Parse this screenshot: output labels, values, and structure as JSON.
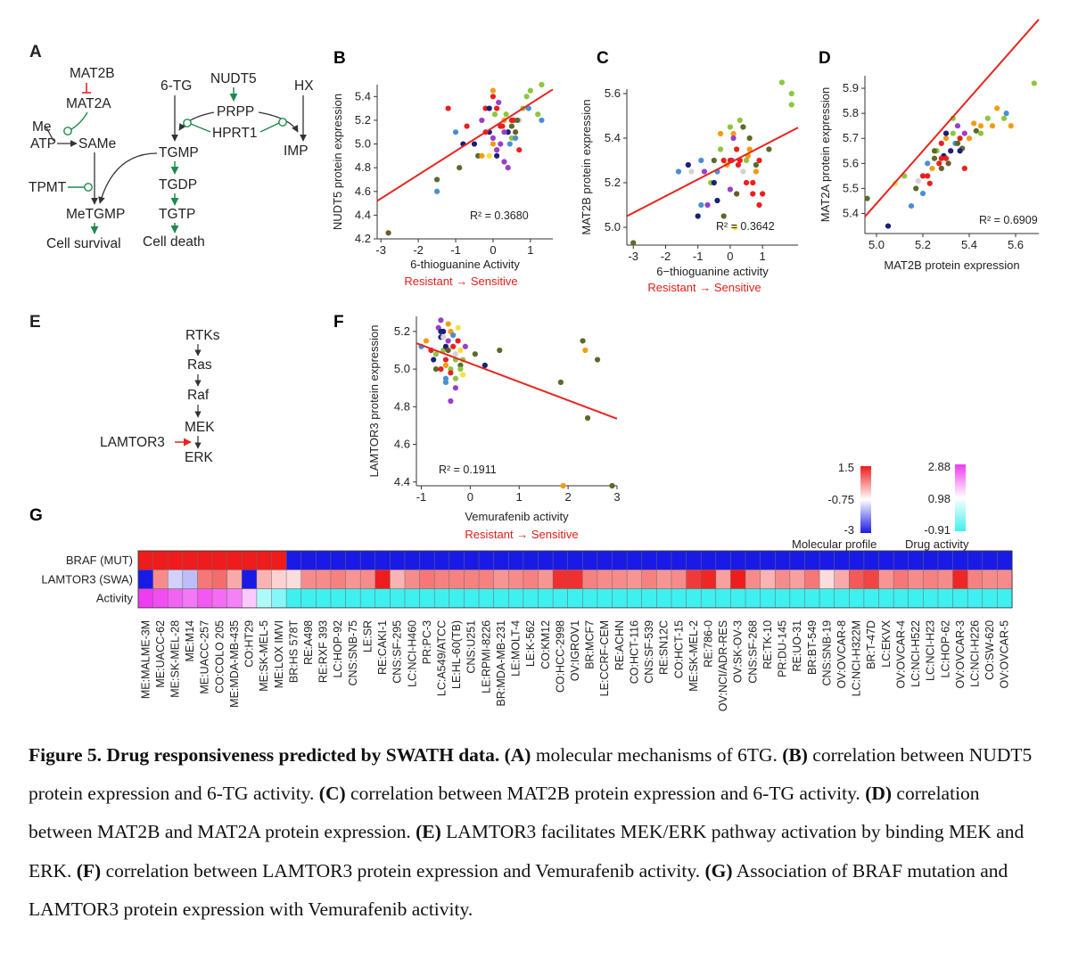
{
  "panels": {
    "A": {
      "label": "A",
      "nodes": {
        "mat2b": "MAT2B",
        "mat2a": "MAT2A",
        "me": "Me",
        "atp": "ATP",
        "same": "SAMe",
        "tpmt": "TPMT",
        "metgmp": "MeTGMP",
        "cell_survival": "Cell survival",
        "tg6": "6-TG",
        "nudt5": "NUDT5",
        "hx": "HX",
        "prpp": "PRPP",
        "hprt1": "HPRT1",
        "tgmp": "TGMP",
        "imp": "IMP",
        "tgdp": "TGDP",
        "tgtp": "TGTP",
        "cell_death": "Cell death"
      }
    },
    "B": {
      "label": "B"
    },
    "C": {
      "label": "C"
    },
    "D": {
      "label": "D"
    },
    "E": {
      "label": "E",
      "nodes": {
        "rtks": "RTKs",
        "ras": "Ras",
        "raf": "Raf",
        "mek": "MEK",
        "erk": "ERK",
        "lamtor3": "LAMTOR3"
      }
    },
    "F": {
      "label": "F"
    },
    "G": {
      "label": "G",
      "row_labels": [
        "BRAF (MUT)",
        "LAMTOR3 (SWA)",
        "Activity"
      ],
      "cell_lines": [
        "ME:MALME-3M",
        "ME:UACC-62",
        "ME:SK-MEL-28",
        "ME:M14",
        "ME:UACC-257",
        "CO:COLO 205",
        "ME:MDA-MB-435",
        "CO:HT29",
        "ME:SK-MEL-5",
        "ME:LOX IMVI",
        "BR:HS 578T",
        "RE:A498",
        "RE:RXF 393",
        "LC:HOP-92",
        "CNS:SNB-75",
        "LE:SR",
        "RE:CAKI-1",
        "CNS:SF-295",
        "LC:NCI-H460",
        "PR:PC-3",
        "LC:A549/ATCC",
        "LE:HL-60(TB)",
        "CNS:U251",
        "LE:RPMI-8226",
        "BR:MDA-MB-231",
        "LE:MOLT-4",
        "LE:K-562",
        "CO:KM12",
        "CO:HCC-2998",
        "OV:IGROV1",
        "BR:MCF7",
        "LE:CCRF-CEM",
        "RE:ACHN",
        "CO:HCT-116",
        "CNS:SF-539",
        "RE:SN12C",
        "CO:HCT-15",
        "ME:SK-MEL-2",
        "RE:786-0",
        "OV:NCI/ADR-RES",
        "OV:SK-OV-3",
        "CNS:SF-268",
        "RE:TK-10",
        "PR:DU-145",
        "RE:UO-31",
        "BR:BT-549",
        "CNS:SNB-19",
        "OV:OVCAR-8",
        "LC:NCI-H322M",
        "BR:T-47D",
        "LC:EKVX",
        "OV:OVCAR-4",
        "LC:NCI-H522",
        "LC:NCI-H23",
        "LC:HOP-62",
        "OV:OVCAR-3",
        "LC:NCI-H226",
        "CO:SW-620",
        "OV:OVCAR-5"
      ],
      "braf_mut": [
        1.5,
        1.5,
        1.5,
        1.5,
        1.5,
        1.5,
        1.5,
        1.5,
        1.5,
        1.5,
        -3,
        -3,
        -3,
        -3,
        -3,
        -3,
        -3,
        -3,
        -3,
        -3,
        -3,
        -3,
        -3,
        -3,
        -3,
        -3,
        -3,
        -3,
        -3,
        -3,
        -3,
        -3,
        -3,
        -3,
        -3,
        -3,
        -3,
        -3,
        -3,
        -3,
        -3,
        -3,
        -3,
        -3,
        -3,
        -3,
        -3,
        -3,
        -3,
        -3,
        -3,
        -3,
        -3,
        -3,
        -3,
        -3,
        -3,
        -3,
        -3
      ],
      "lamtor3": [
        -3,
        0.4,
        -1.2,
        -1.4,
        0.6,
        0.7,
        0.1,
        -3,
        0,
        -0.3,
        -0.4,
        0.4,
        0.4,
        0.5,
        0.3,
        0.4,
        1.5,
        0,
        0.4,
        0.6,
        0.5,
        0.5,
        0.5,
        0.5,
        0.3,
        0.4,
        0.5,
        0.3,
        1.3,
        1.3,
        0.5,
        0.4,
        0.4,
        0.3,
        0.5,
        0.3,
        0.4,
        1.2,
        1.4,
        0.2,
        1.5,
        0.4,
        0,
        0.4,
        0.2,
        0.6,
        -0.4,
        0.1,
        0.9,
        1.1,
        0.3,
        0.6,
        0.4,
        0.5,
        0.4,
        1.4,
        0.5,
        0.4,
        0.4
      ],
      "activity": [
        2.88,
        2.7,
        2.5,
        2.3,
        2.6,
        2.4,
        2.2,
        1.5,
        0.2,
        -0.2,
        -0.91,
        -0.91,
        -0.91,
        -0.91,
        -0.91,
        -0.91,
        -0.91,
        -0.91,
        -0.91,
        -0.91,
        -0.91,
        -0.91,
        -0.91,
        -0.91,
        -0.91,
        -0.91,
        -0.91,
        -0.91,
        -0.91,
        -0.91,
        -0.91,
        -0.91,
        -0.91,
        -0.91,
        -0.91,
        -0.91,
        -0.91,
        -0.91,
        -0.91,
        -0.91,
        -0.91,
        -0.91,
        -0.91,
        -0.91,
        -0.91,
        -0.91,
        -0.91,
        -0.91,
        -0.91,
        -0.91,
        -0.91,
        -0.91,
        -0.91,
        -0.91,
        -0.91,
        -0.91,
        -0.91,
        -0.91,
        -0.91
      ],
      "legend": {
        "molecular": {
          "title": "Molecular profile",
          "ticks": [
            "1.5",
            "-0.75",
            "-3"
          ]
        },
        "drug": {
          "title": "Drug activity",
          "ticks": [
            "2.88",
            "0.98",
            "-0.91"
          ]
        }
      }
    }
  },
  "colors": {
    "red_line": "#e8241f",
    "green_arrow": "#1f8a4c",
    "red_inhibit": "#e8241f",
    "resistant_label": "#e0201b",
    "heat_pos": "#ee1c1c",
    "heat_neg": "#1a1ae6",
    "drug_high": "#ee3cf0",
    "drug_low": "#3ff0f0",
    "dot_palette": [
      "#e8201e",
      "#f39c12",
      "#8dc63f",
      "#9b3fc8",
      "#1a1f7a",
      "#4a8fd0",
      "#5a6a2a",
      "#f4e040",
      "#6b5b2a",
      "#d3d3d3"
    ]
  },
  "chart_data": [
    {
      "panel": "B",
      "type": "scatter",
      "xlabel": "6-thioguanine Activity",
      "ylabel": "NUDT5 protein expression",
      "xlim": [
        -3.1,
        1.6
      ],
      "ylim": [
        4.2,
        5.5
      ],
      "xticks": [
        "-3",
        "-2",
        "-1",
        "0",
        "1"
      ],
      "yticks": [
        "4.2",
        "4.4",
        "4.6",
        "4.8",
        "5.0",
        "5.2",
        "5.4"
      ],
      "r2": "R² = 0.3680",
      "direction": {
        "resistant": "Resistant",
        "sensitive": "Sensitive"
      },
      "fit": {
        "slope": 0.2,
        "intercept": 5.14
      },
      "x": [
        -2.8,
        -1.5,
        -1.5,
        -0.9,
        -1.2,
        -1,
        -0.8,
        -0.7,
        -0.5,
        -0.4,
        -0.3,
        -0.2,
        -0.1,
        0,
        0,
        0.05,
        0.1,
        0.15,
        0.2,
        0.3,
        0.35,
        0.4,
        0.45,
        0.5,
        0.55,
        0.6,
        0.7,
        0.8,
        -0.1,
        0,
        0.1,
        0.2,
        0.3,
        -0.2,
        0,
        0.1,
        0.25,
        0.4,
        0.5,
        0.6,
        0.65,
        0.7,
        0.9,
        1.0,
        1.3,
        0.95,
        1.2,
        1.3,
        -0.5,
        -0.3,
        0.3,
        0.5,
        0.1,
        -0.1
      ],
      "y": [
        4.25,
        4.6,
        4.7,
        4.8,
        5.3,
        5.1,
        5.0,
        5.15,
        5.0,
        4.9,
        5.2,
        5.3,
        5.1,
        5.4,
        5.45,
        5.25,
        5.3,
        5.35,
        5.15,
        5.2,
        5.25,
        5.1,
        5.0,
        5.15,
        5.2,
        5.1,
        5.2,
        5.3,
        4.9,
        5.05,
        4.95,
        5.0,
        4.85,
        5.1,
        5.0,
        4.9,
        5.15,
        4.8,
        5.05,
        5.05,
        5.2,
        4.95,
        5.4,
        5.45,
        5.5,
        5.3,
        5.25,
        5.2,
        5.0,
        4.9,
        5.1,
        5.2,
        4.95,
        5.3
      ],
      "c": [
        8,
        5,
        6,
        6,
        0,
        5,
        4,
        0,
        1,
        6,
        3,
        0,
        4,
        0,
        1,
        2,
        0,
        3,
        0,
        1,
        2,
        4,
        5,
        6,
        0,
        8,
        9,
        2,
        7,
        3,
        5,
        3,
        3,
        0,
        1,
        4,
        0,
        3,
        2,
        5,
        6,
        0,
        2,
        2,
        2,
        5,
        2,
        5,
        4,
        1,
        3,
        0,
        3,
        4
      ]
    },
    {
      "panel": "C",
      "type": "scatter",
      "xlabel": "6−thioguanine activity",
      "ylabel": "MAT2B protein expression",
      "xlim": [
        -3.2,
        2.1
      ],
      "ylim": [
        4.92,
        5.62
      ],
      "xticks": [
        "-3",
        "-2",
        "-1",
        "0",
        "1"
      ],
      "yticks": [
        "5.0",
        "5.2",
        "5.4",
        "5.6"
      ],
      "r2": "R² = 0.3642",
      "direction": {
        "resistant": "Resistant",
        "sensitive": "Sensitive"
      },
      "fit": {
        "slope": 0.075,
        "intercept": 5.29
      },
      "x": [
        -3,
        -1.6,
        -1.3,
        -1.0,
        -0.9,
        -0.8,
        -0.6,
        -0.5,
        -0.4,
        -0.3,
        -0.2,
        -0.1,
        0,
        0.05,
        0.1,
        0.2,
        0.3,
        0.4,
        0.5,
        0.6,
        0.7,
        0.8,
        0.9,
        1.0,
        -0.7,
        -0.5,
        -0.2,
        0,
        0.2,
        0.3,
        0.5,
        0.6,
        0.8,
        1.2,
        1.6,
        1.9,
        1.9,
        -0.3,
        0.1,
        0.4,
        0.7,
        -1.2,
        -0.9,
        -0.4,
        0,
        0.25,
        0.55,
        0.9,
        0.15
      ],
      "y": [
        4.93,
        5.25,
        5.28,
        5.05,
        5.1,
        5.25,
        5.2,
        5.3,
        5.25,
        5.35,
        5.3,
        5.28,
        5.45,
        5.3,
        5.42,
        5.35,
        5.3,
        5.25,
        5.3,
        5.4,
        5.15,
        5.25,
        5.3,
        5.15,
        5.1,
        5.2,
        5.05,
        5.3,
        5.15,
        5.48,
        5.2,
        5.35,
        5.28,
        5.35,
        5.65,
        5.55,
        5.6,
        5.42,
        5.4,
        5.45,
        5.2,
        5.25,
        5.3,
        5.12,
        5.17,
        5.28,
        5.32,
        5.1,
        5.0
      ],
      "c": [
        6,
        5,
        4,
        4,
        5,
        3,
        2,
        6,
        5,
        2,
        0,
        1,
        2,
        3,
        1,
        0,
        0,
        9,
        2,
        6,
        0,
        1,
        0,
        0,
        3,
        4,
        6,
        0,
        8,
        2,
        0,
        1,
        6,
        6,
        2,
        2,
        2,
        1,
        3,
        6,
        0,
        9,
        5,
        4,
        3,
        0,
        1,
        0,
        7
      ]
    },
    {
      "panel": "D",
      "type": "scatter",
      "xlabel": "MAT2B protein expression",
      "ylabel": "MAT2A protein expression",
      "xlim": [
        4.95,
        5.7
      ],
      "ylim": [
        5.32,
        5.95
      ],
      "xticks": [
        "5.0",
        "5.2",
        "5.4",
        "5.6"
      ],
      "yticks": [
        "5.4",
        "5.5",
        "5.6",
        "5.7",
        "5.8",
        "5.9"
      ],
      "r2": "R² = 0.6909",
      "fit": {
        "slope": 1.05,
        "intercept": 0.19
      },
      "x": [
        4.96,
        5.05,
        5.08,
        5.15,
        5.17,
        5.18,
        5.2,
        5.22,
        5.23,
        5.24,
        5.25,
        5.26,
        5.27,
        5.28,
        5.29,
        5.3,
        5.31,
        5.32,
        5.33,
        5.34,
        5.35,
        5.36,
        5.37,
        5.38,
        5.4,
        5.42,
        5.43,
        5.45,
        5.48,
        5.5,
        5.52,
        5.55,
        5.56,
        5.58,
        5.68,
        5.22,
        5.25,
        5.28,
        5.3,
        5.33,
        5.36,
        5.2,
        5.28,
        5.35,
        5.45,
        5.38,
        5.12,
        5.3
      ],
      "y": [
        5.46,
        5.35,
        5.52,
        5.43,
        5.5,
        5.53,
        5.55,
        5.6,
        5.52,
        5.58,
        5.62,
        5.65,
        5.6,
        5.68,
        5.63,
        5.7,
        5.6,
        5.65,
        5.72,
        5.68,
        5.75,
        5.7,
        5.66,
        5.72,
        5.7,
        5.76,
        5.73,
        5.72,
        5.78,
        5.75,
        5.82,
        5.78,
        5.8,
        5.75,
        5.92,
        5.55,
        5.65,
        5.58,
        5.62,
        5.78,
        5.65,
        5.48,
        5.62,
        5.68,
        5.75,
        5.58,
        5.55,
        5.72
      ],
      "c": [
        6,
        4,
        7,
        5,
        6,
        9,
        0,
        5,
        0,
        1,
        6,
        2,
        0,
        0,
        4,
        1,
        8,
        4,
        2,
        5,
        3,
        0,
        6,
        3,
        1,
        1,
        6,
        2,
        2,
        1,
        1,
        2,
        5,
        1,
        2,
        0,
        6,
        8,
        0,
        2,
        4,
        5,
        0,
        6,
        1,
        0,
        2,
        4
      ]
    },
    {
      "panel": "F",
      "type": "scatter",
      "xlabel": "Vemurafenib activity",
      "ylabel": "LAMTOR3 protein expression",
      "xlim": [
        -1.1,
        3.0
      ],
      "ylim": [
        4.38,
        5.28
      ],
      "xticks": [
        "-1",
        "0",
        "1",
        "2",
        "3"
      ],
      "yticks": [
        "4.4",
        "4.6",
        "4.8",
        "5.0",
        "5.2"
      ],
      "r2": "R² = 0.1911",
      "direction": {
        "resistant": "Resistant",
        "sensitive": "Sensitive"
      },
      "fit": {
        "slope": -0.098,
        "intercept": 5.03
      },
      "x": [
        -1.0,
        -0.9,
        -0.8,
        -0.75,
        -0.7,
        -0.65,
        -0.6,
        -0.55,
        -0.5,
        -0.5,
        -0.45,
        -0.4,
        -0.4,
        -0.35,
        -0.3,
        -0.3,
        -0.25,
        -0.2,
        -0.2,
        -0.15,
        -0.1,
        -0.6,
        -0.55,
        -0.45,
        -0.35,
        -0.25,
        -0.7,
        -0.5,
        -0.4,
        -0.3,
        0.1,
        0.3,
        0.6,
        -0.6,
        -0.5,
        -0.4,
        -0.3,
        -0.2,
        -0.15,
        -0.55,
        -0.45,
        -0.5,
        -0.6,
        1.85,
        2.3,
        2.4,
        2.6,
        2.35,
        2.9,
        1.9
      ],
      "y": [
        5.12,
        5.15,
        5.1,
        5.05,
        5.0,
        5.22,
        5.17,
        5.1,
        5.05,
        4.95,
        5.15,
        5.2,
        5.0,
        5.12,
        5.08,
        4.95,
        5.15,
        5.1,
        5.02,
        5.05,
        5.12,
        5.26,
        5.2,
        5.24,
        5.18,
        5.22,
        5.08,
        5.12,
        4.98,
        4.9,
        5.08,
        5.02,
        5.1,
        5.0,
        4.93,
        4.83,
        5.05,
        5.0,
        4.97,
        5.17,
        5.1,
        5.02,
        5.2,
        4.93,
        5.15,
        4.74,
        5.05,
        5.1,
        4.38,
        4.38
      ],
      "c": [
        5,
        1,
        0,
        4,
        6,
        3,
        4,
        2,
        0,
        5,
        3,
        1,
        2,
        0,
        9,
        2,
        0,
        7,
        6,
        2,
        3,
        3,
        4,
        1,
        5,
        7,
        2,
        4,
        0,
        3,
        6,
        4,
        6,
        0,
        5,
        3,
        2,
        2,
        7,
        9,
        8,
        1,
        4,
        6,
        6,
        6,
        6,
        1,
        6,
        1
      ]
    }
  ],
  "caption": {
    "title": "Figure 5. Drug responsiveness predicted by SWATH data.",
    "parts": [
      {
        "label": "(A)",
        "text": " molecular mechanisms of 6TG. "
      },
      {
        "label": "(B)",
        "text": " correlation between NUDT5 protein expression and 6-TG activity. "
      },
      {
        "label": "(C)",
        "text": " correlation between MAT2B protein expression and 6-TG activity.  "
      },
      {
        "label": "(D)",
        "text": " correlation between MAT2B and MAT2A protein expression. "
      },
      {
        "label": "(E)",
        "text": " LAMTOR3 facilitates MEK/ERK pathway activation by binding MEK and ERK. "
      },
      {
        "label": "(F)",
        "text": " correlation between LAMTOR3 protein expression and Vemurafenib activity. "
      },
      {
        "label": "(G)",
        "text": " Association of BRAF mutation and LAMTOR3 protein expression with Vemurafenib activity."
      }
    ]
  }
}
